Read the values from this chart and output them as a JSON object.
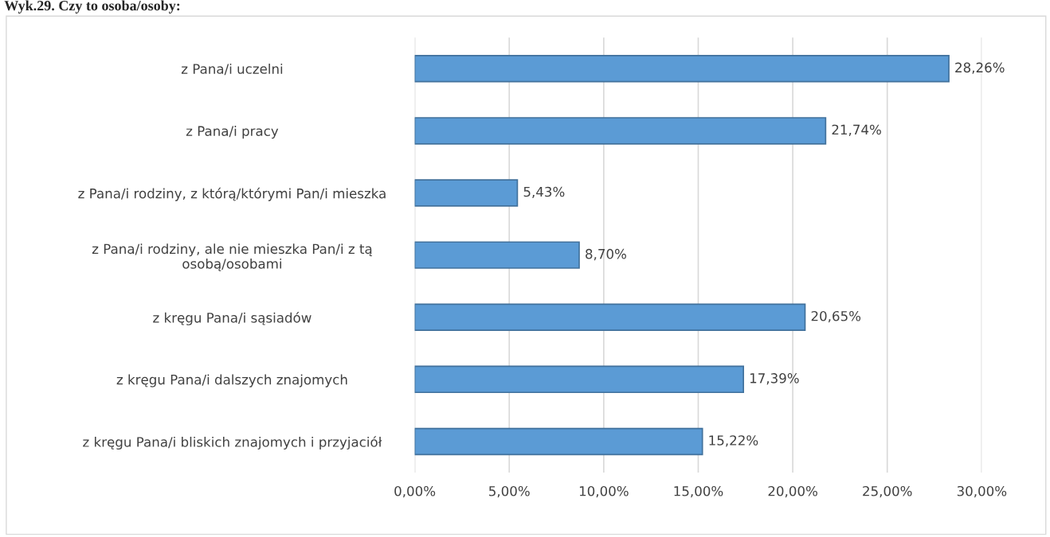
{
  "chart_data": {
    "type": "bar",
    "orientation": "horizontal",
    "title": "Wyk.29. Czy to osoba/osoby:",
    "categories": [
      "z Pana/i uczelni",
      "z Pana/i pracy",
      "z Pana/i rodziny, z którą/którymi Pan/i mieszka",
      "z Pana/i rodziny, ale nie mieszka Pan/i z tą\nosobą/osobami",
      "z kręgu Pana/i sąsiadów",
      "z kręgu Pana/i dalszych znajomych",
      "z kręgu Pana/i bliskich znajomych i przyjaciół"
    ],
    "values": [
      28.26,
      21.74,
      5.43,
      8.7,
      20.65,
      17.39,
      15.22
    ],
    "value_labels": [
      "28,26%",
      "21,74%",
      "5,43%",
      "8,70%",
      "20,65%",
      "17,39%",
      "15,22%"
    ],
    "color": "#5b9bd5",
    "xlim": [
      0,
      30
    ],
    "xticks": [
      {
        "value": 0,
        "label": "0,00%"
      },
      {
        "value": 5,
        "label": "5,00%"
      },
      {
        "value": 10,
        "label": "10,00%"
      },
      {
        "value": 15,
        "label": "15,00%"
      },
      {
        "value": 20,
        "label": "20,00%"
      },
      {
        "value": 25,
        "label": "25,00%"
      },
      {
        "value": 30,
        "label": "30,00%"
      }
    ],
    "grid": "x",
    "legend": false
  }
}
